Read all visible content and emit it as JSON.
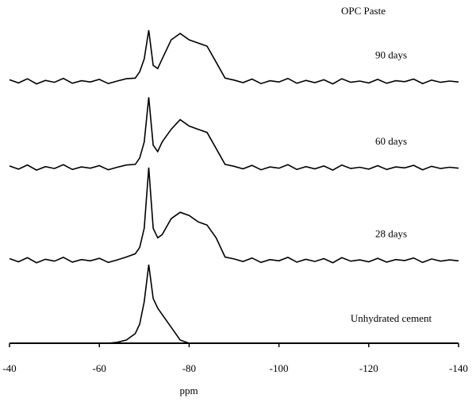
{
  "chart_data": {
    "type": "line",
    "title": "OPC Paste",
    "x_label": "ppm",
    "x": [
      -40,
      -42,
      -44,
      -46,
      -48,
      -50,
      -52,
      -54,
      -56,
      -58,
      -60,
      -62,
      -64,
      -66,
      -68,
      -69,
      -70,
      -71,
      -72,
      -73,
      -74,
      -76,
      -78,
      -80,
      -82,
      -84,
      -86,
      -88,
      -90,
      -92,
      -94,
      -96,
      -98,
      -100,
      -102,
      -104,
      -106,
      -108,
      -110,
      -112,
      -114,
      -116,
      -118,
      -120,
      -122,
      -124,
      -126,
      -128,
      -130,
      -132,
      -134,
      -136,
      -138,
      -140
    ],
    "xlim": [
      -40,
      -140
    ],
    "xticks": [
      -40,
      -60,
      -80,
      -100,
      -120,
      -140
    ],
    "ylim": [
      0,
      100
    ],
    "series": [
      {
        "name": "90 days",
        "color": "#000000",
        "values": [
          82.5,
          81.5,
          82.8,
          81.2,
          82.3,
          81.7,
          82.9,
          81.4,
          82.2,
          81.8,
          82.6,
          81.3,
          82.1,
          82.8,
          83,
          85,
          89,
          98,
          87,
          86,
          89,
          95,
          97,
          95,
          94,
          93,
          88,
          83,
          82.4,
          81.6,
          82.7,
          81.3,
          82.2,
          81.8,
          82.9,
          81.4,
          82.3,
          81.6,
          82.5,
          81.2,
          82.8,
          81.7,
          82.1,
          81.5,
          82.6,
          81.4,
          82.2,
          81.9,
          82.7,
          81.3,
          82.4,
          81.7,
          82.1,
          81.8
        ]
      },
      {
        "name": "60 days",
        "color": "#000000",
        "values": [
          55.5,
          54.5,
          55.8,
          54.2,
          55.3,
          54.7,
          55.9,
          54.4,
          55.2,
          54.8,
          55.6,
          54.3,
          55.1,
          55.8,
          56,
          58,
          63,
          77,
          62,
          60,
          63,
          67,
          70,
          68,
          67,
          66,
          61,
          56,
          55.4,
          54.6,
          55.7,
          54.3,
          55.2,
          54.8,
          55.9,
          54.4,
          55.3,
          54.6,
          55.5,
          54.2,
          55.8,
          54.7,
          55.1,
          54.5,
          55.6,
          54.4,
          55.2,
          54.9,
          55.7,
          54.3,
          55.4,
          54.7,
          55.1,
          54.8
        ]
      },
      {
        "name": "28 days",
        "color": "#000000",
        "values": [
          26.5,
          25.5,
          26.8,
          25.2,
          26.3,
          25.7,
          26.9,
          25.4,
          26.2,
          25.8,
          26.6,
          25.3,
          26.1,
          27,
          28,
          30,
          36,
          55,
          36,
          33,
          34,
          39,
          41,
          40,
          38,
          37,
          33,
          27,
          26.4,
          25.6,
          26.7,
          25.3,
          26.2,
          25.8,
          26.9,
          25.4,
          26.3,
          25.6,
          26.5,
          25.2,
          26.8,
          25.7,
          26.1,
          25.5,
          26.6,
          25.4,
          26.2,
          25.9,
          26.7,
          25.3,
          26.4,
          25.7,
          26.1,
          25.8
        ]
      },
      {
        "name": "Unhydrated cement",
        "color": "#000000",
        "values": [
          0,
          0,
          0,
          0,
          0,
          0,
          0,
          0,
          0,
          0,
          0,
          0,
          0.3,
          1,
          3,
          6,
          13,
          24.6,
          14,
          11,
          9,
          5,
          1,
          0,
          0,
          0,
          0,
          0,
          0,
          0,
          0,
          0,
          0,
          0,
          0,
          0,
          0,
          0,
          0,
          0,
          0,
          0,
          0,
          0,
          0,
          0,
          0,
          0,
          0,
          0,
          0,
          0,
          0,
          0
        ]
      }
    ]
  }
}
